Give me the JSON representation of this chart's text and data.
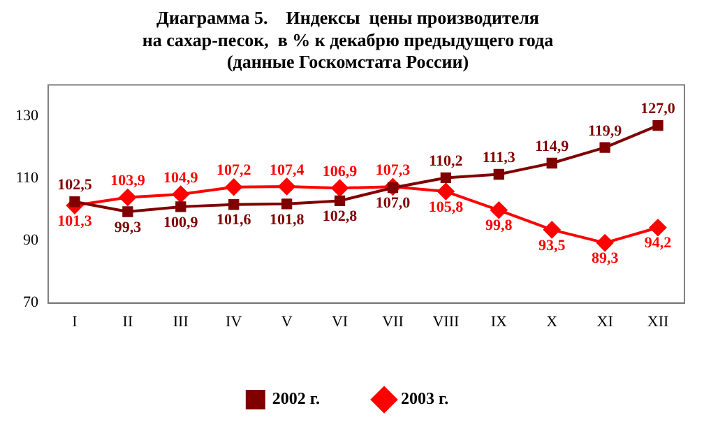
{
  "chart_data": {
    "type": "line",
    "title": "Диаграмма 5.    Индексы  цены производителя\nна сахар-песок,  в % к декабрю предыдущего года\n(данные Госкомстата России)",
    "categories": [
      "I",
      "II",
      "III",
      "IV",
      "V",
      "VI",
      "VII",
      "VIII",
      "IX",
      "X",
      "XI",
      "XII"
    ],
    "series": [
      {
        "name": "2002 г.",
        "color": "#800000",
        "marker": "square",
        "values": [
          102.5,
          99.3,
          100.9,
          101.6,
          101.8,
          102.8,
          107.0,
          110.2,
          111.3,
          114.9,
          119.9,
          127.0
        ],
        "value_labels": [
          "102,5",
          "99,3",
          "100,9",
          "101,6",
          "101,8",
          "102,8",
          "107,0",
          "110,2",
          "111,3",
          "114,9",
          "119,9",
          "127,0"
        ]
      },
      {
        "name": "2003 г.",
        "color": "#ff0000",
        "marker": "diamond",
        "values": [
          101.3,
          103.9,
          104.9,
          107.2,
          107.4,
          106.9,
          107.3,
          105.8,
          99.8,
          93.5,
          89.3,
          94.2
        ],
        "value_labels": [
          "101,3",
          "103,9",
          "104,9",
          "107,2",
          "107,4",
          "106,9",
          "107,3",
          "105,8",
          "99,8",
          "93,5",
          "89,3",
          "94,2"
        ]
      }
    ],
    "ylim": [
      70,
      140
    ],
    "yticks": [
      70,
      90,
      110,
      130
    ],
    "grid": false,
    "legend": "bottom",
    "line_style": "solid"
  }
}
